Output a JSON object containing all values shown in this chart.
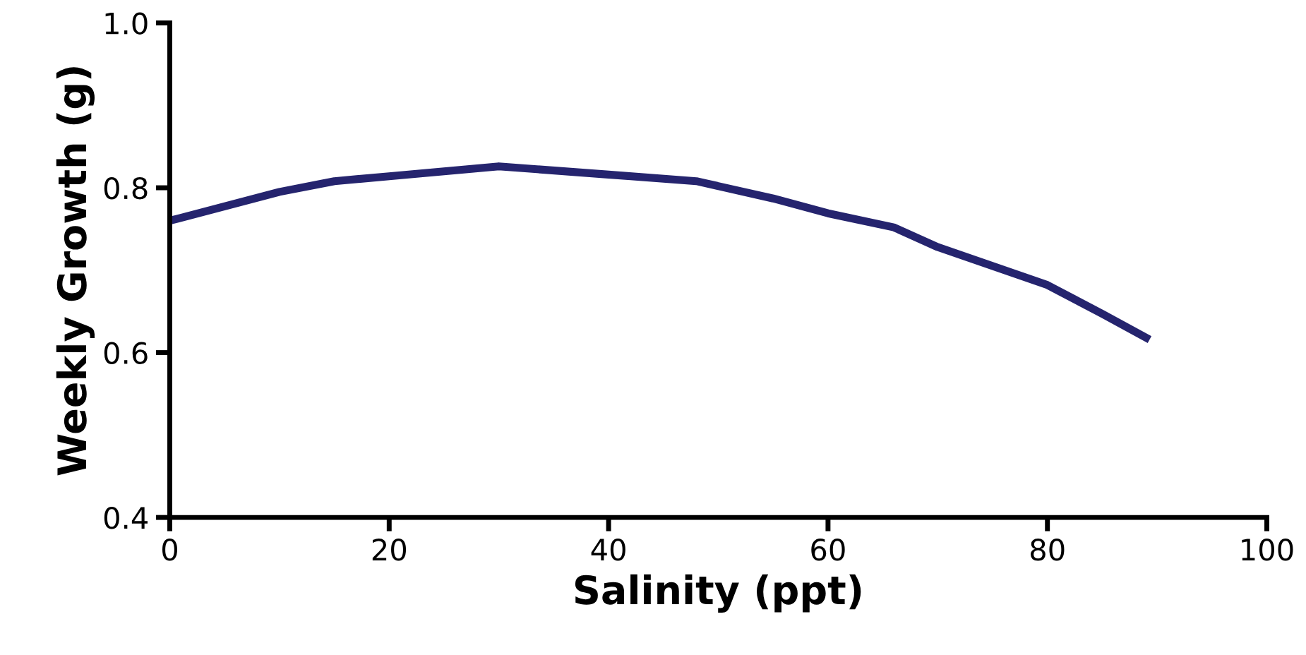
{
  "chart_data": {
    "type": "line",
    "xlabel": "Salinity (ppt)",
    "ylabel": "Weekly Growth (g)",
    "xlim": [
      0,
      100
    ],
    "xticks": [
      0,
      20,
      40,
      60,
      80,
      100
    ],
    "ylim": [
      0.4,
      1.0
    ],
    "yticks": [
      0.4,
      0.6,
      0.8,
      {
        "value": 1,
        "label": "1.0"
      }
    ],
    "grid": false,
    "legend": false,
    "marker": "none",
    "line_style": "solid",
    "series": [
      {
        "color": "#25246e",
        "x": [
          0,
          10,
          15,
          20,
          30,
          40,
          48,
          55,
          60,
          66,
          70,
          80,
          85,
          89
        ],
        "values": [
          0.76,
          0.795,
          0.808,
          0.814,
          0.826,
          0.816,
          0.808,
          0.787,
          0.769,
          0.752,
          0.728,
          0.682,
          0.647,
          0.618
        ]
      }
    ]
  }
}
